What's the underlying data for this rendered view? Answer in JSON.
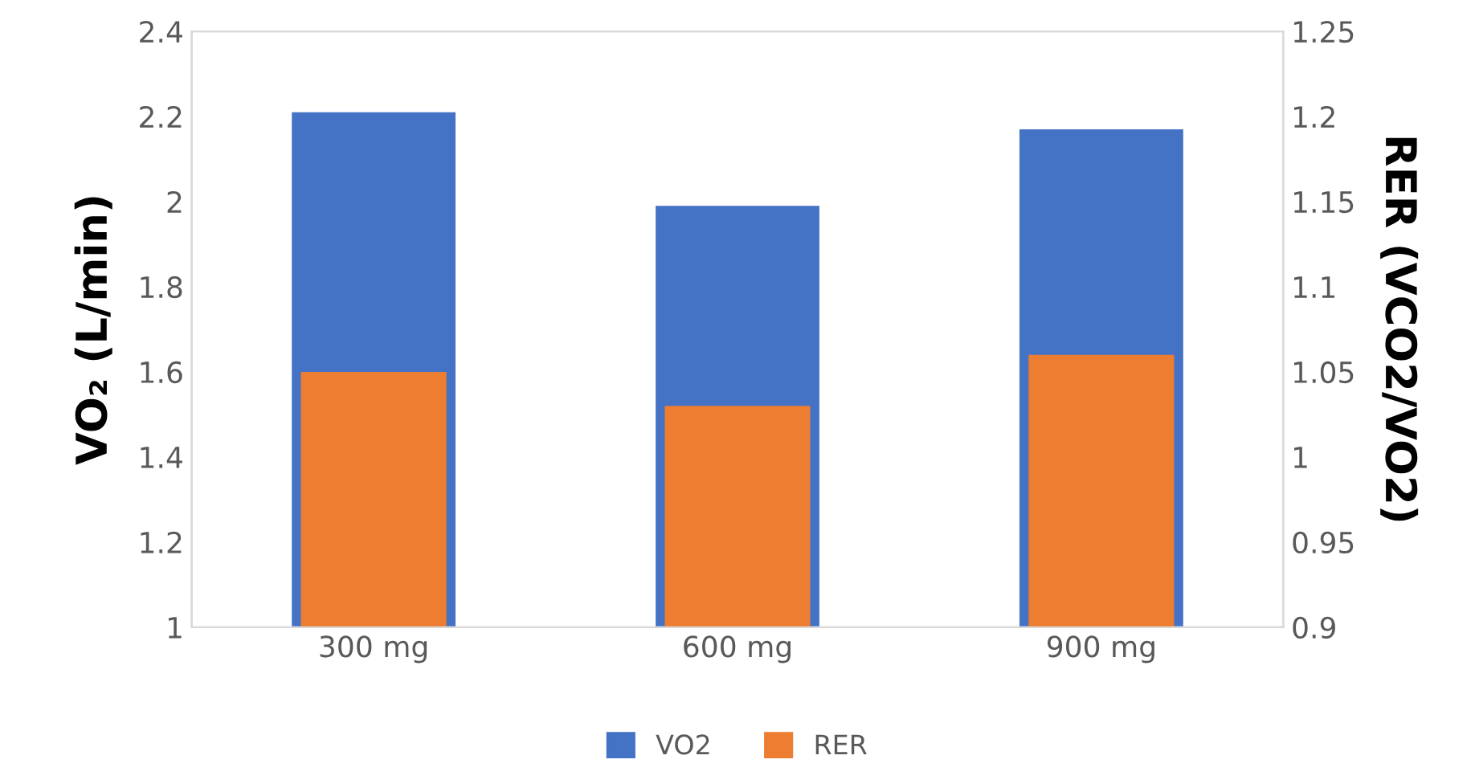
{
  "chart_data": {
    "type": "bar",
    "categories": [
      "300 mg",
      "600 mg",
      "900 mg"
    ],
    "series": [
      {
        "name": "VO2",
        "color": "#4472c4",
        "values": [
          2.21,
          1.99,
          2.17
        ]
      },
      {
        "name": "RER",
        "color": "#ed7d31",
        "values": [
          1.05,
          1.03,
          1.06
        ],
        "axis": "y2"
      }
    ],
    "ylabel": "VO₂ (L/min)",
    "y2label": "RER (VCO2/VO2)",
    "ylim": [
      1,
      2.4
    ],
    "yticks": [
      1,
      1.2,
      1.4,
      1.6,
      1.8,
      2,
      2.2,
      2.4
    ],
    "y2lim": [
      0.9,
      1.25
    ],
    "y2ticks": [
      0.9,
      0.95,
      1,
      1.05,
      1.1,
      1.15,
      1.2,
      1.25
    ],
    "grid": false,
    "legend": "bottom"
  }
}
